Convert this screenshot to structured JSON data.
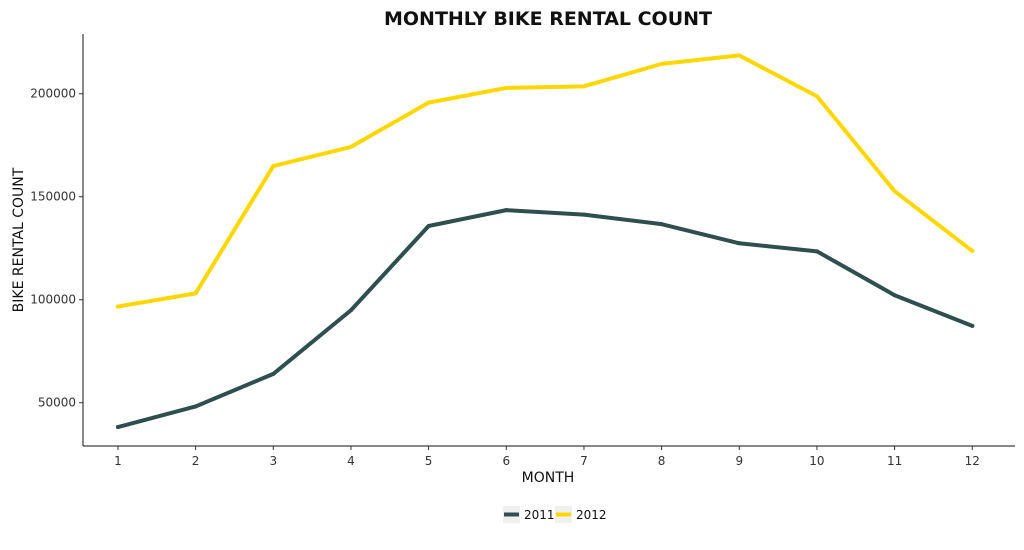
{
  "chart_data": {
    "type": "line",
    "title": "MONTHLY BIKE RENTAL COUNT",
    "xlabel": "MONTH",
    "ylabel": "BIKE RENTAL COUNT",
    "x": [
      1,
      2,
      3,
      4,
      5,
      6,
      7,
      8,
      9,
      10,
      11,
      12
    ],
    "x_tick_labels": [
      "1",
      "2",
      "3",
      "4",
      "5",
      "6",
      "7",
      "8",
      "9",
      "10",
      "11",
      "12"
    ],
    "y_ticks": [
      50000,
      100000,
      150000,
      200000
    ],
    "y_tick_labels": [
      "50000",
      "100000",
      "150000",
      "200000"
    ],
    "xlim": [
      0.55,
      12.55
    ],
    "ylim": [
      29000,
      229000
    ],
    "grid": false,
    "legend_position": "bottom",
    "series": [
      {
        "name": "2011",
        "color": "#2f4f4f",
        "values": [
          38200,
          48200,
          64000,
          94900,
          135800,
          143500,
          141300,
          136700,
          127400,
          123500,
          102200,
          87300
        ]
      },
      {
        "name": "2012",
        "color": "#ffd700",
        "values": [
          96700,
          103100,
          164900,
          174200,
          195700,
          202800,
          203600,
          214500,
          218600,
          198800,
          152700,
          123700
        ]
      }
    ]
  }
}
